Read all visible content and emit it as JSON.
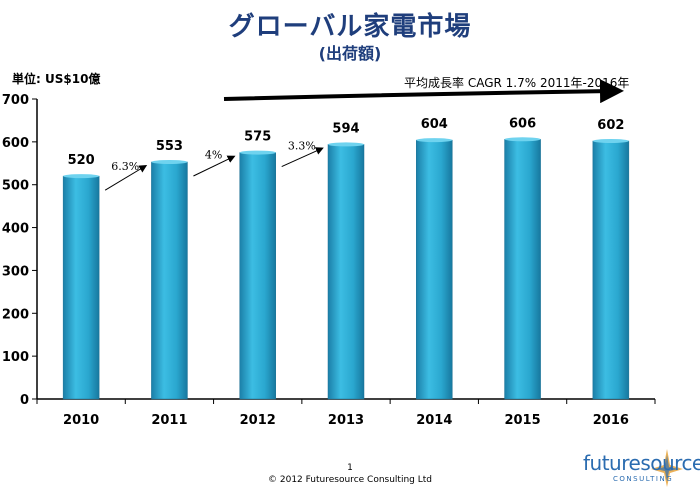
{
  "title": "グローバル家電市場",
  "subtitle": "(出荷額)",
  "unit_label": "単位: US$10億",
  "cagr_text": "平均成長率 CAGR 1.7% 2011年-2016年",
  "footer": {
    "page_number": "1",
    "copyright": "© 2012 Futuresource Consulting Ltd"
  },
  "logo": {
    "name": "futuresource",
    "tagline": "CONSULTING"
  },
  "chart_data": {
    "type": "bar",
    "categories": [
      "2010",
      "2011",
      "2012",
      "2013",
      "2014",
      "2015",
      "2016"
    ],
    "values": [
      520,
      553,
      575,
      594,
      604,
      606,
      602
    ],
    "data_labels": [
      "520",
      "553",
      "575",
      "594",
      "604",
      "606",
      "602"
    ],
    "ylim": [
      0,
      700
    ],
    "yticks": [
      "0",
      "100",
      "200",
      "300",
      "400",
      "500",
      "600",
      "700"
    ],
    "growth_annotations": [
      {
        "from": "2010",
        "to": "2011",
        "label": "6.3%"
      },
      {
        "from": "2011",
        "to": "2012",
        "label": "4%"
      },
      {
        "from": "2012",
        "to": "2013",
        "label": "3.3%"
      }
    ],
    "grid": false,
    "bar_color": "#2aa7cf"
  }
}
